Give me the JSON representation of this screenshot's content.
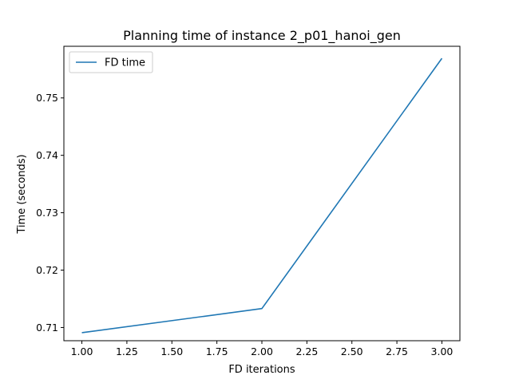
{
  "chart_data": {
    "type": "line",
    "title": "Planning time of instance 2_p01_hanoi_gen",
    "xlabel": "FD iterations",
    "ylabel": "Time (seconds)",
    "xlim": [
      0.9,
      3.1
    ],
    "ylim": [
      0.7077,
      0.759
    ],
    "x_ticks": [
      1.0,
      1.25,
      1.5,
      1.75,
      2.0,
      2.25,
      2.5,
      2.75,
      3.0
    ],
    "x_tick_labels": [
      "1.00",
      "1.25",
      "1.50",
      "1.75",
      "2.00",
      "2.25",
      "2.50",
      "2.75",
      "3.00"
    ],
    "y_ticks": [
      0.71,
      0.72,
      0.73,
      0.74,
      0.75
    ],
    "y_tick_labels": [
      "0.71",
      "0.72",
      "0.73",
      "0.74",
      "0.75"
    ],
    "grid": false,
    "legend_position": "top-left",
    "series": [
      {
        "name": "FD time",
        "color": "#1f77b4",
        "x": [
          1,
          2,
          3
        ],
        "y": [
          0.7091,
          0.7133,
          0.7569
        ]
      }
    ]
  }
}
